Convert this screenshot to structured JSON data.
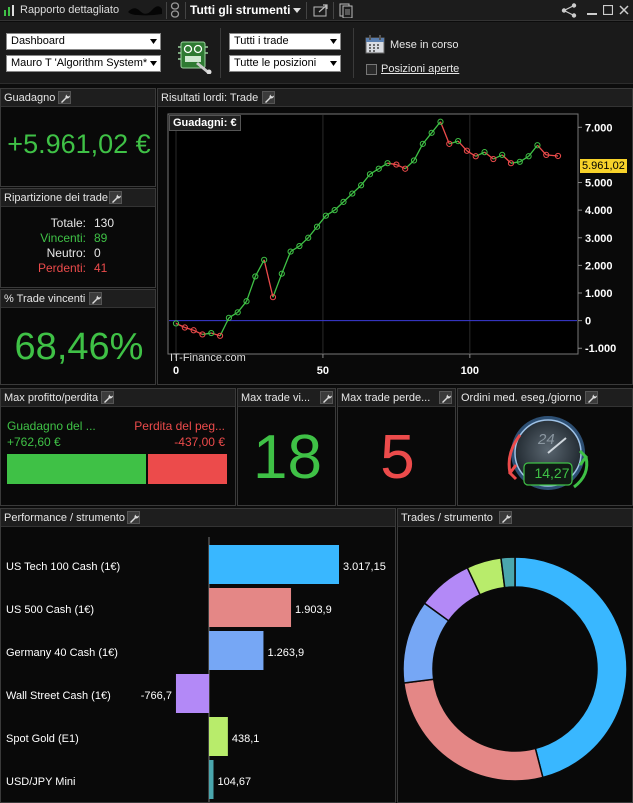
{
  "titlebar": {
    "title": "Rapporto dettagliato",
    "instrument_selector": "Tutti gli strumenti"
  },
  "toolbar": {
    "report_type": "Dashboard",
    "system": "Mauro T 'Algorithm System*",
    "trade_filter": "Tutti i trade",
    "position_filter": "Tutte le posizioni",
    "period": "Mese in corso",
    "open_positions_label": "Posizioni aperte"
  },
  "gain_panel": {
    "title": "Guadagno",
    "value": "+5.961,02 €"
  },
  "breakdown_panel": {
    "title": "Ripartizione dei trade",
    "rows": [
      {
        "label": "Totale:",
        "value": "130"
      },
      {
        "label": "Vincenti:",
        "value": "89"
      },
      {
        "label": "Neutro:",
        "value": "0"
      },
      {
        "label": "Perdenti:",
        "value": "41"
      }
    ]
  },
  "winrate_panel": {
    "title": "% Trade vincenti",
    "value": "68,46%"
  },
  "results_panel": {
    "title": "Risultati lordi: Trade",
    "chart_label": "Guadagni: €",
    "watermark": "IT-Finance.com",
    "current_value": "5.961,02"
  },
  "chart_data": [
    {
      "type": "line",
      "title": "Guadagni: €",
      "xlabel": "",
      "ylabel": "",
      "x_ticks": [
        "0",
        "50",
        "100"
      ],
      "y_ticks": [
        "7.000",
        "5.000",
        "4.000",
        "3.000",
        "2.000",
        "1.000",
        "0",
        "-1.000"
      ],
      "xlim": [
        0,
        130
      ],
      "ylim": [
        -1100,
        7300
      ],
      "marker": "circles on rising segments, green when rising, red when falling",
      "series": [
        {
          "x": [
            0,
            3,
            6,
            9,
            12,
            15,
            18,
            21,
            24,
            27,
            30,
            33,
            36,
            39,
            42,
            45,
            48,
            51,
            54,
            57,
            60,
            63,
            66,
            69,
            72,
            75,
            78,
            81,
            84,
            87,
            90,
            93,
            96,
            99,
            102,
            105,
            108,
            111,
            114,
            117,
            120,
            123,
            126,
            130
          ],
          "y": [
            -100,
            -250,
            -350,
            -500,
            -450,
            -550,
            100,
            300,
            700,
            1600,
            2200,
            850,
            1700,
            2500,
            2700,
            3000,
            3400,
            3800,
            4000,
            4300,
            4600,
            4900,
            5300,
            5500,
            5700,
            5650,
            5500,
            5800,
            6400,
            6800,
            7200,
            6400,
            6500,
            6150,
            5950,
            6100,
            5850,
            6000,
            5700,
            5750,
            5950,
            6350,
            6000,
            5961
          ]
        }
      ]
    },
    {
      "type": "bar",
      "title": "Performance / strumento",
      "orientation": "horizontal",
      "categories": [
        "US Tech 100 Cash (1€)",
        "US 500 Cash (1€)",
        "Germany 40 Cash (1€)",
        "Wall Street Cash (1€)",
        "Spot Gold (E1)",
        "USD/JPY Mini"
      ],
      "values": [
        3017.15,
        1903.9,
        1263.9,
        -766.7,
        438.1,
        104.67
      ],
      "labels": [
        "3.017,15",
        "1.903,9",
        "1.263,9",
        "-766,7",
        "438,1",
        "104,67"
      ],
      "colors": [
        "#39b7ff",
        "#e48786",
        "#76a7f5",
        "#b389f7",
        "#b8ec6b",
        "#4aa6ad"
      ]
    },
    {
      "type": "pie",
      "title": "Trades / strumento",
      "style": "donut",
      "categories": [
        "US Tech 100 Cash (1€)",
        "US 500 Cash (1€)",
        "Germany 40 Cash (1€)",
        "Wall Street Cash (1€)",
        "Spot Gold (E1)",
        "USD/JPY Mini"
      ],
      "values": [
        46,
        27,
        12,
        8,
        5,
        2
      ],
      "colors": [
        "#39b7ff",
        "#e48786",
        "#76a7f5",
        "#b389f7",
        "#b8ec6b",
        "#4aa6ad"
      ]
    }
  ],
  "maxpl_panel": {
    "title": "Max profitto/perdita",
    "profit_label": "Guadagno del ...",
    "profit_value": "+762,60 €",
    "loss_label": "Perdita del peg...",
    "loss_value": "-437,00 €",
    "profit_ratio": 0.636
  },
  "maxwin_panel": {
    "title": "Max trade vi...",
    "value": "18"
  },
  "maxloss_panel": {
    "title": "Max trade perde...",
    "value": "5"
  },
  "orders_panel": {
    "title": "Ordini med. eseg./giorno",
    "value": "14,27",
    "clock_label": "24"
  },
  "perf_panel": {
    "title": "Performance / strumento"
  },
  "trades_panel": {
    "title": "Trades / strumento"
  },
  "colors": {
    "green": "#3fc146",
    "red": "#ec4b4b",
    "accent_yellow": "#f7d22a"
  }
}
